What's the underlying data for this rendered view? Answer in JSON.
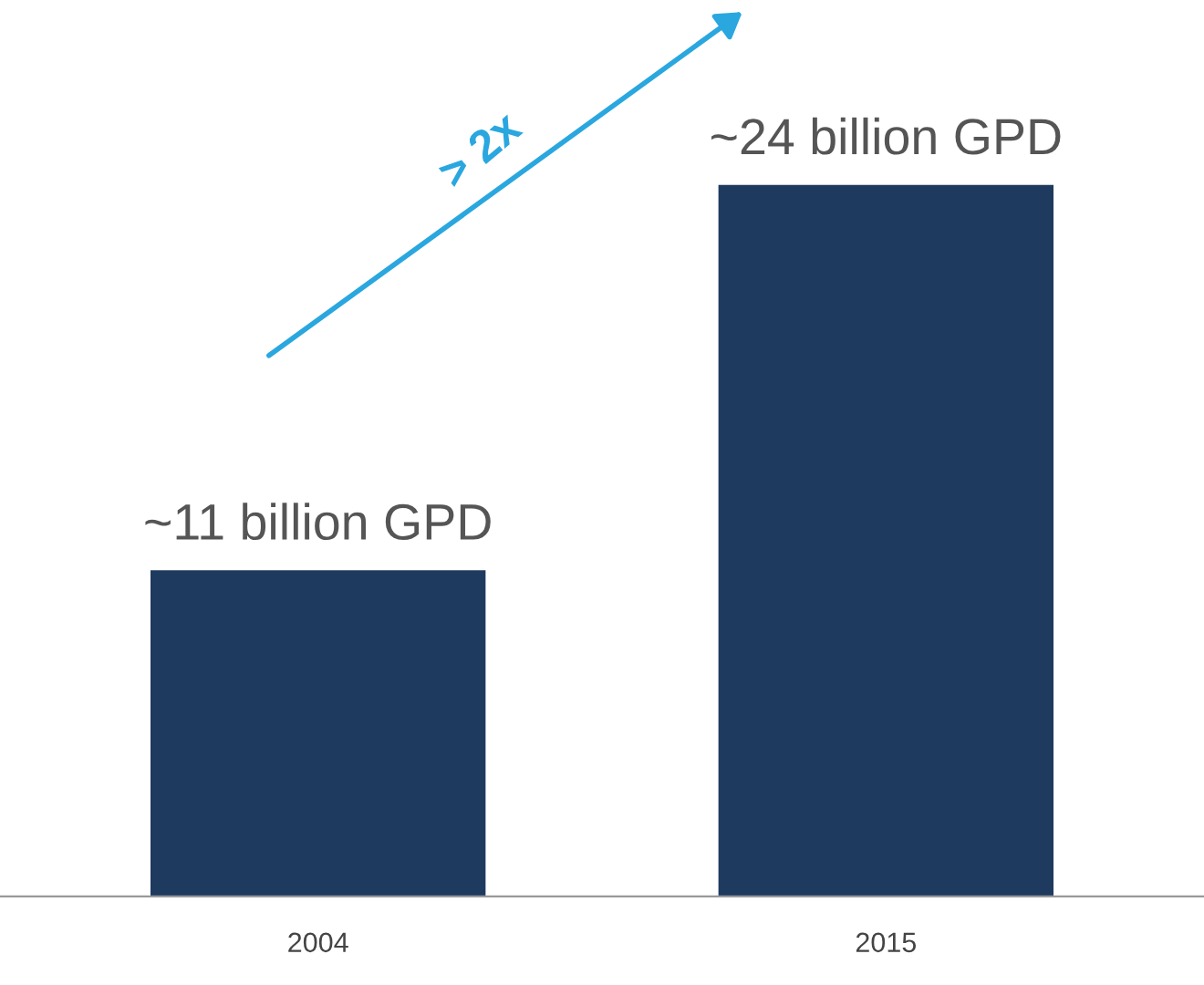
{
  "chart_data": {
    "type": "bar",
    "categories": [
      "2004",
      "2015"
    ],
    "values": [
      11,
      24
    ],
    "color": "#1f3a5f",
    "value_labels": [
      "~11 billion GPD",
      "~24 billion GPD"
    ],
    "annotations": [
      "> 2x"
    ],
    "grid": false,
    "legend": false
  }
}
